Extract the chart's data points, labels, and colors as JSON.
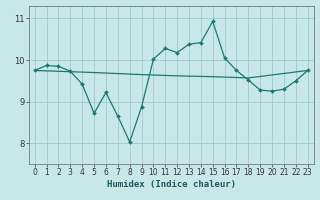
{
  "xlabel": "Humidex (Indice chaleur)",
  "bg_color": "#c8e8e8",
  "grid_color": "#a0cccc",
  "line_color": "#1a7a6e",
  "xlim": [
    -0.5,
    23.5
  ],
  "ylim": [
    7.5,
    11.3
  ],
  "yticks": [
    8,
    9,
    10,
    11
  ],
  "xticks": [
    0,
    1,
    2,
    3,
    4,
    5,
    6,
    7,
    8,
    9,
    10,
    11,
    12,
    13,
    14,
    15,
    16,
    17,
    18,
    19,
    20,
    21,
    22,
    23
  ],
  "series1_x": [
    0,
    1,
    2,
    3,
    4,
    5,
    6,
    7,
    8,
    9,
    10,
    11,
    12,
    13,
    14,
    15,
    16,
    17,
    18,
    19,
    20,
    21,
    22,
    23
  ],
  "series1_y": [
    9.75,
    9.87,
    9.85,
    9.73,
    9.42,
    8.72,
    9.22,
    8.65,
    8.03,
    8.87,
    10.02,
    10.28,
    10.18,
    10.38,
    10.42,
    10.93,
    10.05,
    9.75,
    9.52,
    9.28,
    9.25,
    9.3,
    9.5,
    9.75
  ],
  "series2_x": [
    0,
    5,
    9,
    12,
    15,
    18,
    23
  ],
  "series2_y": [
    9.75,
    9.7,
    9.65,
    9.62,
    9.6,
    9.57,
    9.75
  ],
  "tick_fontsize": 5.5,
  "xlabel_fontsize": 6.5
}
